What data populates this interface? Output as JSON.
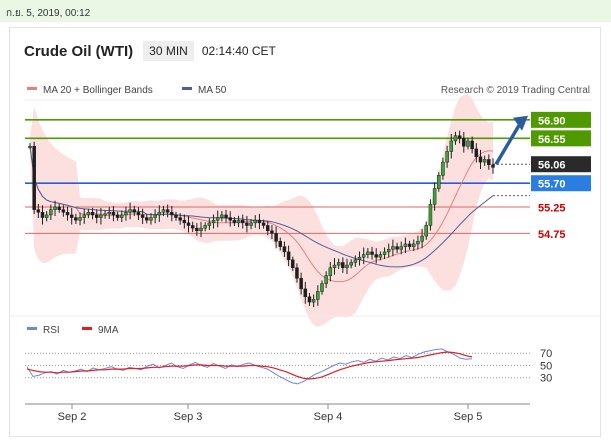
{
  "topbar": {
    "datetime": "ก.ย. 5, 2019, 00:12"
  },
  "header": {
    "title": "Crude Oil (WTI)",
    "interval": "30 MIN",
    "clock": "02:14:40 CET"
  },
  "chart_data": {
    "type": "candlestick",
    "source": "Research © 2019 Trading Central",
    "legend": [
      {
        "name": "MA 20 + Bollinger Bands",
        "color": "#e88080"
      },
      {
        "name": "MA 50",
        "color": "#4c5f9a"
      }
    ],
    "x_labels": [
      "Sep 2",
      "Sep 3",
      "Sep 4",
      "Sep 5"
    ],
    "y_range": [
      53.3,
      57.2
    ],
    "last_price": {
      "value": 56.06,
      "label": "56.06"
    },
    "levels": [
      {
        "label": "56.90",
        "value": 56.9,
        "kind": "resistance"
      },
      {
        "label": "56.55",
        "value": 56.55,
        "kind": "resistance"
      },
      {
        "label": "55.70",
        "value": 55.7,
        "kind": "pivot"
      },
      {
        "label": "55.25",
        "value": 55.25,
        "kind": "support"
      },
      {
        "label": "54.75",
        "value": 54.75,
        "kind": "support"
      }
    ],
    "close_series": [
      56.4,
      55.2,
      55.15,
      55.05,
      55.1,
      55.2,
      55.25,
      55.2,
      55.15,
      55.1,
      55.05,
      55.0,
      55.05,
      55.1,
      55.15,
      55.1,
      55.05,
      55.1,
      55.12,
      55.15,
      55.1,
      55.05,
      55.1,
      55.15,
      55.2,
      55.15,
      55.1,
      55.05,
      55.0,
      55.05,
      55.1,
      55.15,
      55.2,
      55.15,
      55.1,
      55.05,
      55.0,
      54.95,
      54.9,
      54.85,
      54.8,
      54.85,
      54.9,
      54.95,
      55.0,
      55.05,
      55.1,
      55.05,
      55.0,
      54.95,
      55.0,
      54.95,
      54.9,
      54.95,
      55.0,
      54.95,
      54.9,
      54.8,
      54.75,
      54.6,
      54.5,
      54.4,
      54.25,
      54.1,
      53.9,
      53.7,
      53.55,
      53.45,
      53.5,
      53.65,
      53.8,
      53.95,
      54.1,
      54.15,
      54.2,
      54.1,
      54.15,
      54.2,
      54.25,
      54.3,
      54.35,
      54.4,
      54.35,
      54.3,
      54.35,
      54.4,
      54.45,
      54.5,
      54.45,
      54.5,
      54.55,
      54.5,
      54.55,
      54.6,
      54.7,
      54.9,
      55.3,
      55.6,
      55.85,
      56.1,
      56.3,
      56.5,
      56.6,
      56.55,
      56.4,
      56.5,
      56.35,
      56.2,
      56.1,
      56.15,
      56.05,
      56.0
    ],
    "rsi": {
      "legend": [
        {
          "name": "RSI",
          "color": "#6f86e0"
        },
        {
          "name": "9MA",
          "color": "#e02020"
        }
      ],
      "levels": [
        70,
        50,
        30
      ],
      "y_range": [
        10,
        85
      ],
      "rsi_values": [
        48,
        32,
        34,
        38,
        40,
        36,
        42,
        39,
        41,
        44,
        40,
        46,
        43,
        45,
        48,
        44,
        42,
        47,
        45,
        43,
        49,
        52,
        46,
        50,
        54,
        48,
        45,
        51,
        55,
        50,
        47,
        53,
        49,
        45,
        51,
        48,
        52,
        54,
        50,
        47,
        44,
        38,
        32,
        27,
        22,
        20,
        24,
        30,
        36,
        40,
        45,
        50,
        54,
        52,
        56,
        58,
        55,
        60,
        57,
        62,
        59,
        64,
        61,
        66,
        63,
        68,
        72,
        74,
        76,
        77,
        72,
        68,
        62,
        60,
        61
      ],
      "ma_values": [
        44,
        42,
        40,
        39,
        39,
        38,
        39,
        39,
        40,
        41,
        41,
        42,
        43,
        43,
        44,
        44,
        44,
        45,
        45,
        45,
        46,
        47,
        47,
        48,
        49,
        49,
        49,
        50,
        51,
        51,
        50,
        50,
        50,
        49,
        49,
        49,
        49,
        50,
        50,
        49,
        48,
        46,
        43,
        40,
        36,
        32,
        29,
        28,
        29,
        31,
        35,
        39,
        43,
        46,
        49,
        51,
        53,
        55,
        56,
        57,
        58,
        59,
        60,
        61,
        62,
        63,
        65,
        67,
        69,
        71,
        72,
        71,
        69,
        66,
        64
      ]
    }
  }
}
